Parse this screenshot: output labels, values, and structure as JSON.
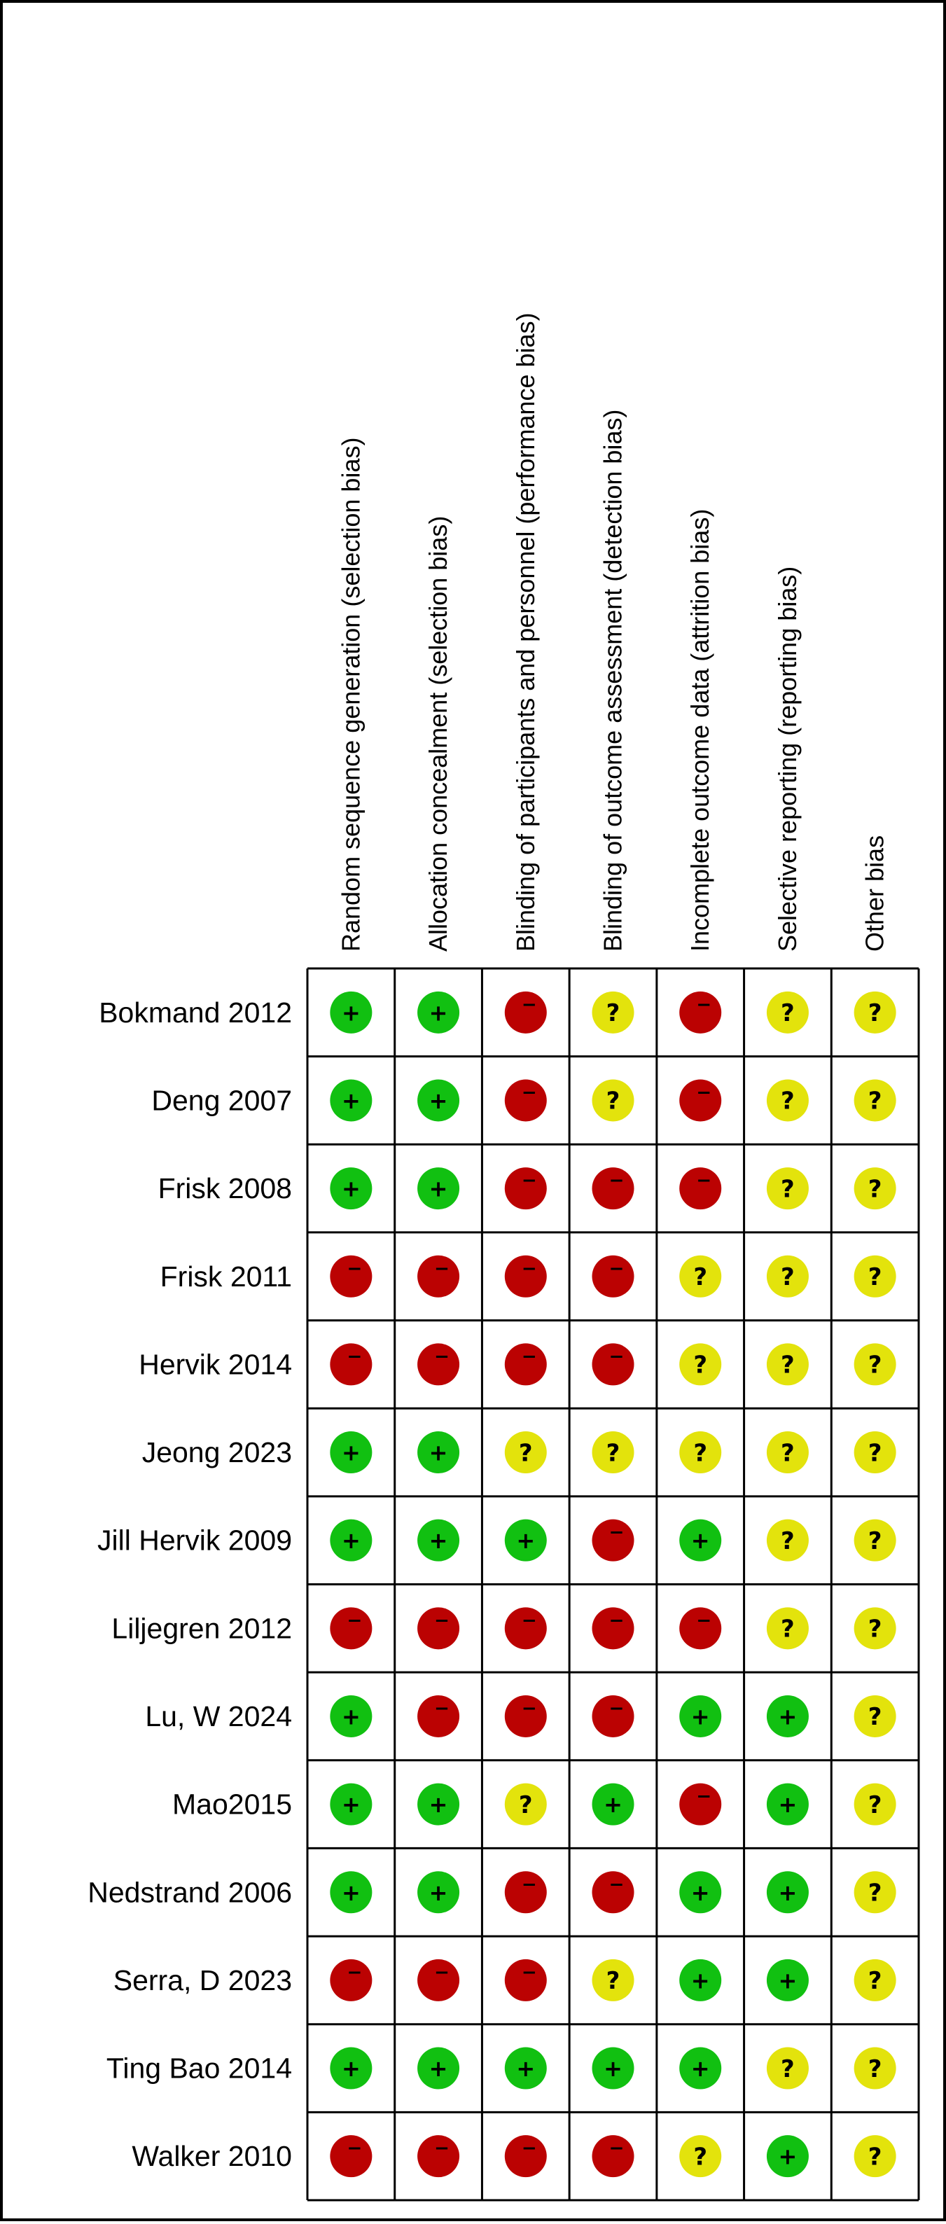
{
  "colors": {
    "low": "#11c011",
    "high": "#bb0202",
    "unclear": "#e3e30c"
  },
  "chart_data": {
    "type": "table",
    "domains": [
      "Random sequence generation (selection bias)",
      "Allocation concealment (selection bias)",
      "Blinding of participants and personnel (performance bias)",
      "Blinding of outcome assessment (detection bias)",
      "Incomplete outcome data (attrition bias)",
      "Selective reporting (reporting bias)",
      "Other bias"
    ],
    "studies": [
      "Bokmand 2012",
      "Deng 2007",
      "Frisk 2008",
      "Frisk 2011",
      "Hervik 2014",
      "Jeong 2023",
      "Jill Hervik 2009",
      "Liljegren 2012",
      "Lu, W 2024",
      "Mao2015",
      "Nedstrand 2006",
      "Serra, D 2023",
      "Ting Bao 2014",
      "Walker 2010"
    ],
    "judgements": [
      [
        "low",
        "low",
        "high",
        "unclear",
        "high",
        "unclear",
        "unclear"
      ],
      [
        "low",
        "low",
        "high",
        "unclear",
        "high",
        "unclear",
        "unclear"
      ],
      [
        "low",
        "low",
        "high",
        "high",
        "high",
        "unclear",
        "unclear"
      ],
      [
        "high",
        "high",
        "high",
        "high",
        "unclear",
        "unclear",
        "unclear"
      ],
      [
        "high",
        "high",
        "high",
        "high",
        "unclear",
        "unclear",
        "unclear"
      ],
      [
        "low",
        "low",
        "unclear",
        "unclear",
        "unclear",
        "unclear",
        "unclear"
      ],
      [
        "low",
        "low",
        "low",
        "high",
        "low",
        "unclear",
        "unclear"
      ],
      [
        "high",
        "high",
        "high",
        "high",
        "high",
        "unclear",
        "unclear"
      ],
      [
        "low",
        "high",
        "high",
        "high",
        "low",
        "low",
        "unclear"
      ],
      [
        "low",
        "low",
        "unclear",
        "low",
        "high",
        "low",
        "unclear"
      ],
      [
        "low",
        "low",
        "high",
        "high",
        "low",
        "low",
        "unclear"
      ],
      [
        "high",
        "high",
        "high",
        "unclear",
        "low",
        "low",
        "unclear"
      ],
      [
        "low",
        "low",
        "low",
        "low",
        "low",
        "unclear",
        "unclear"
      ],
      [
        "high",
        "high",
        "high",
        "high",
        "unclear",
        "low",
        "unclear"
      ]
    ],
    "symbols": {
      "low": "+",
      "high": "−",
      "unclear": "?"
    }
  }
}
